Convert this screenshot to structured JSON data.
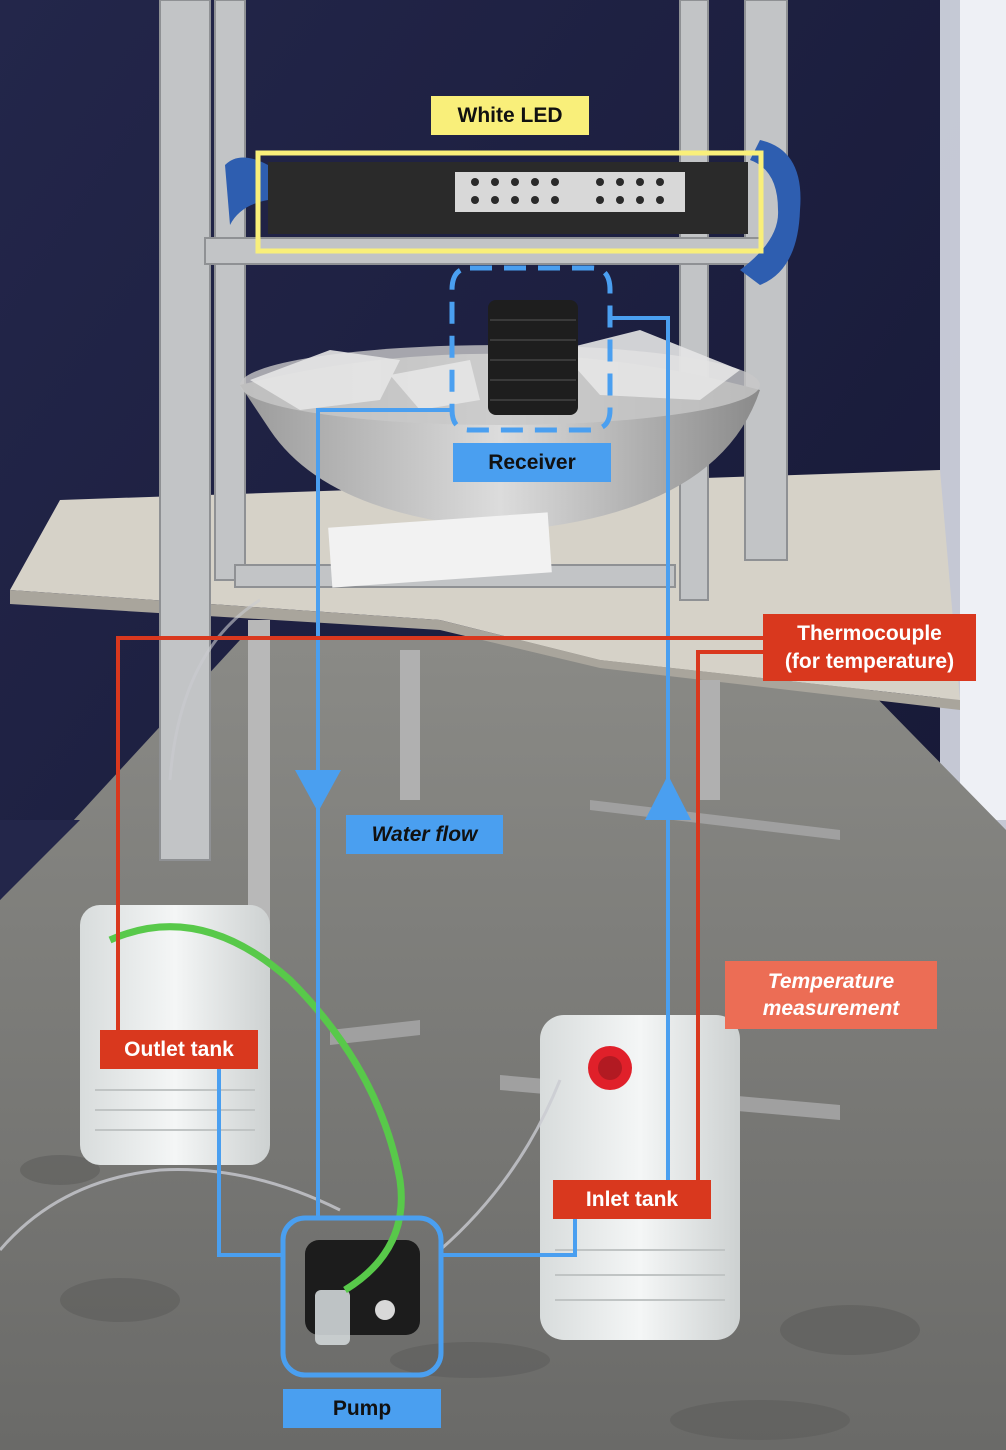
{
  "labels": {
    "white_led": "White LED",
    "receiver": "Receiver",
    "thermocouple_line1": "Thermocouple",
    "thermocouple_line2": "(for temperature)",
    "water_flow": "Water flow",
    "temperature_line1": "Temperature",
    "temperature_line2": "measurement",
    "outlet_tank": "Outlet tank",
    "inlet_tank": "Inlet tank",
    "pump": "Pump"
  },
  "colors": {
    "water_flow_line": "#4a9ff0",
    "temperature_line": "#d9381e",
    "led_box": "#f9ef7a",
    "background_wall": "#1a1d3a",
    "floor": "#7c7c7a"
  }
}
